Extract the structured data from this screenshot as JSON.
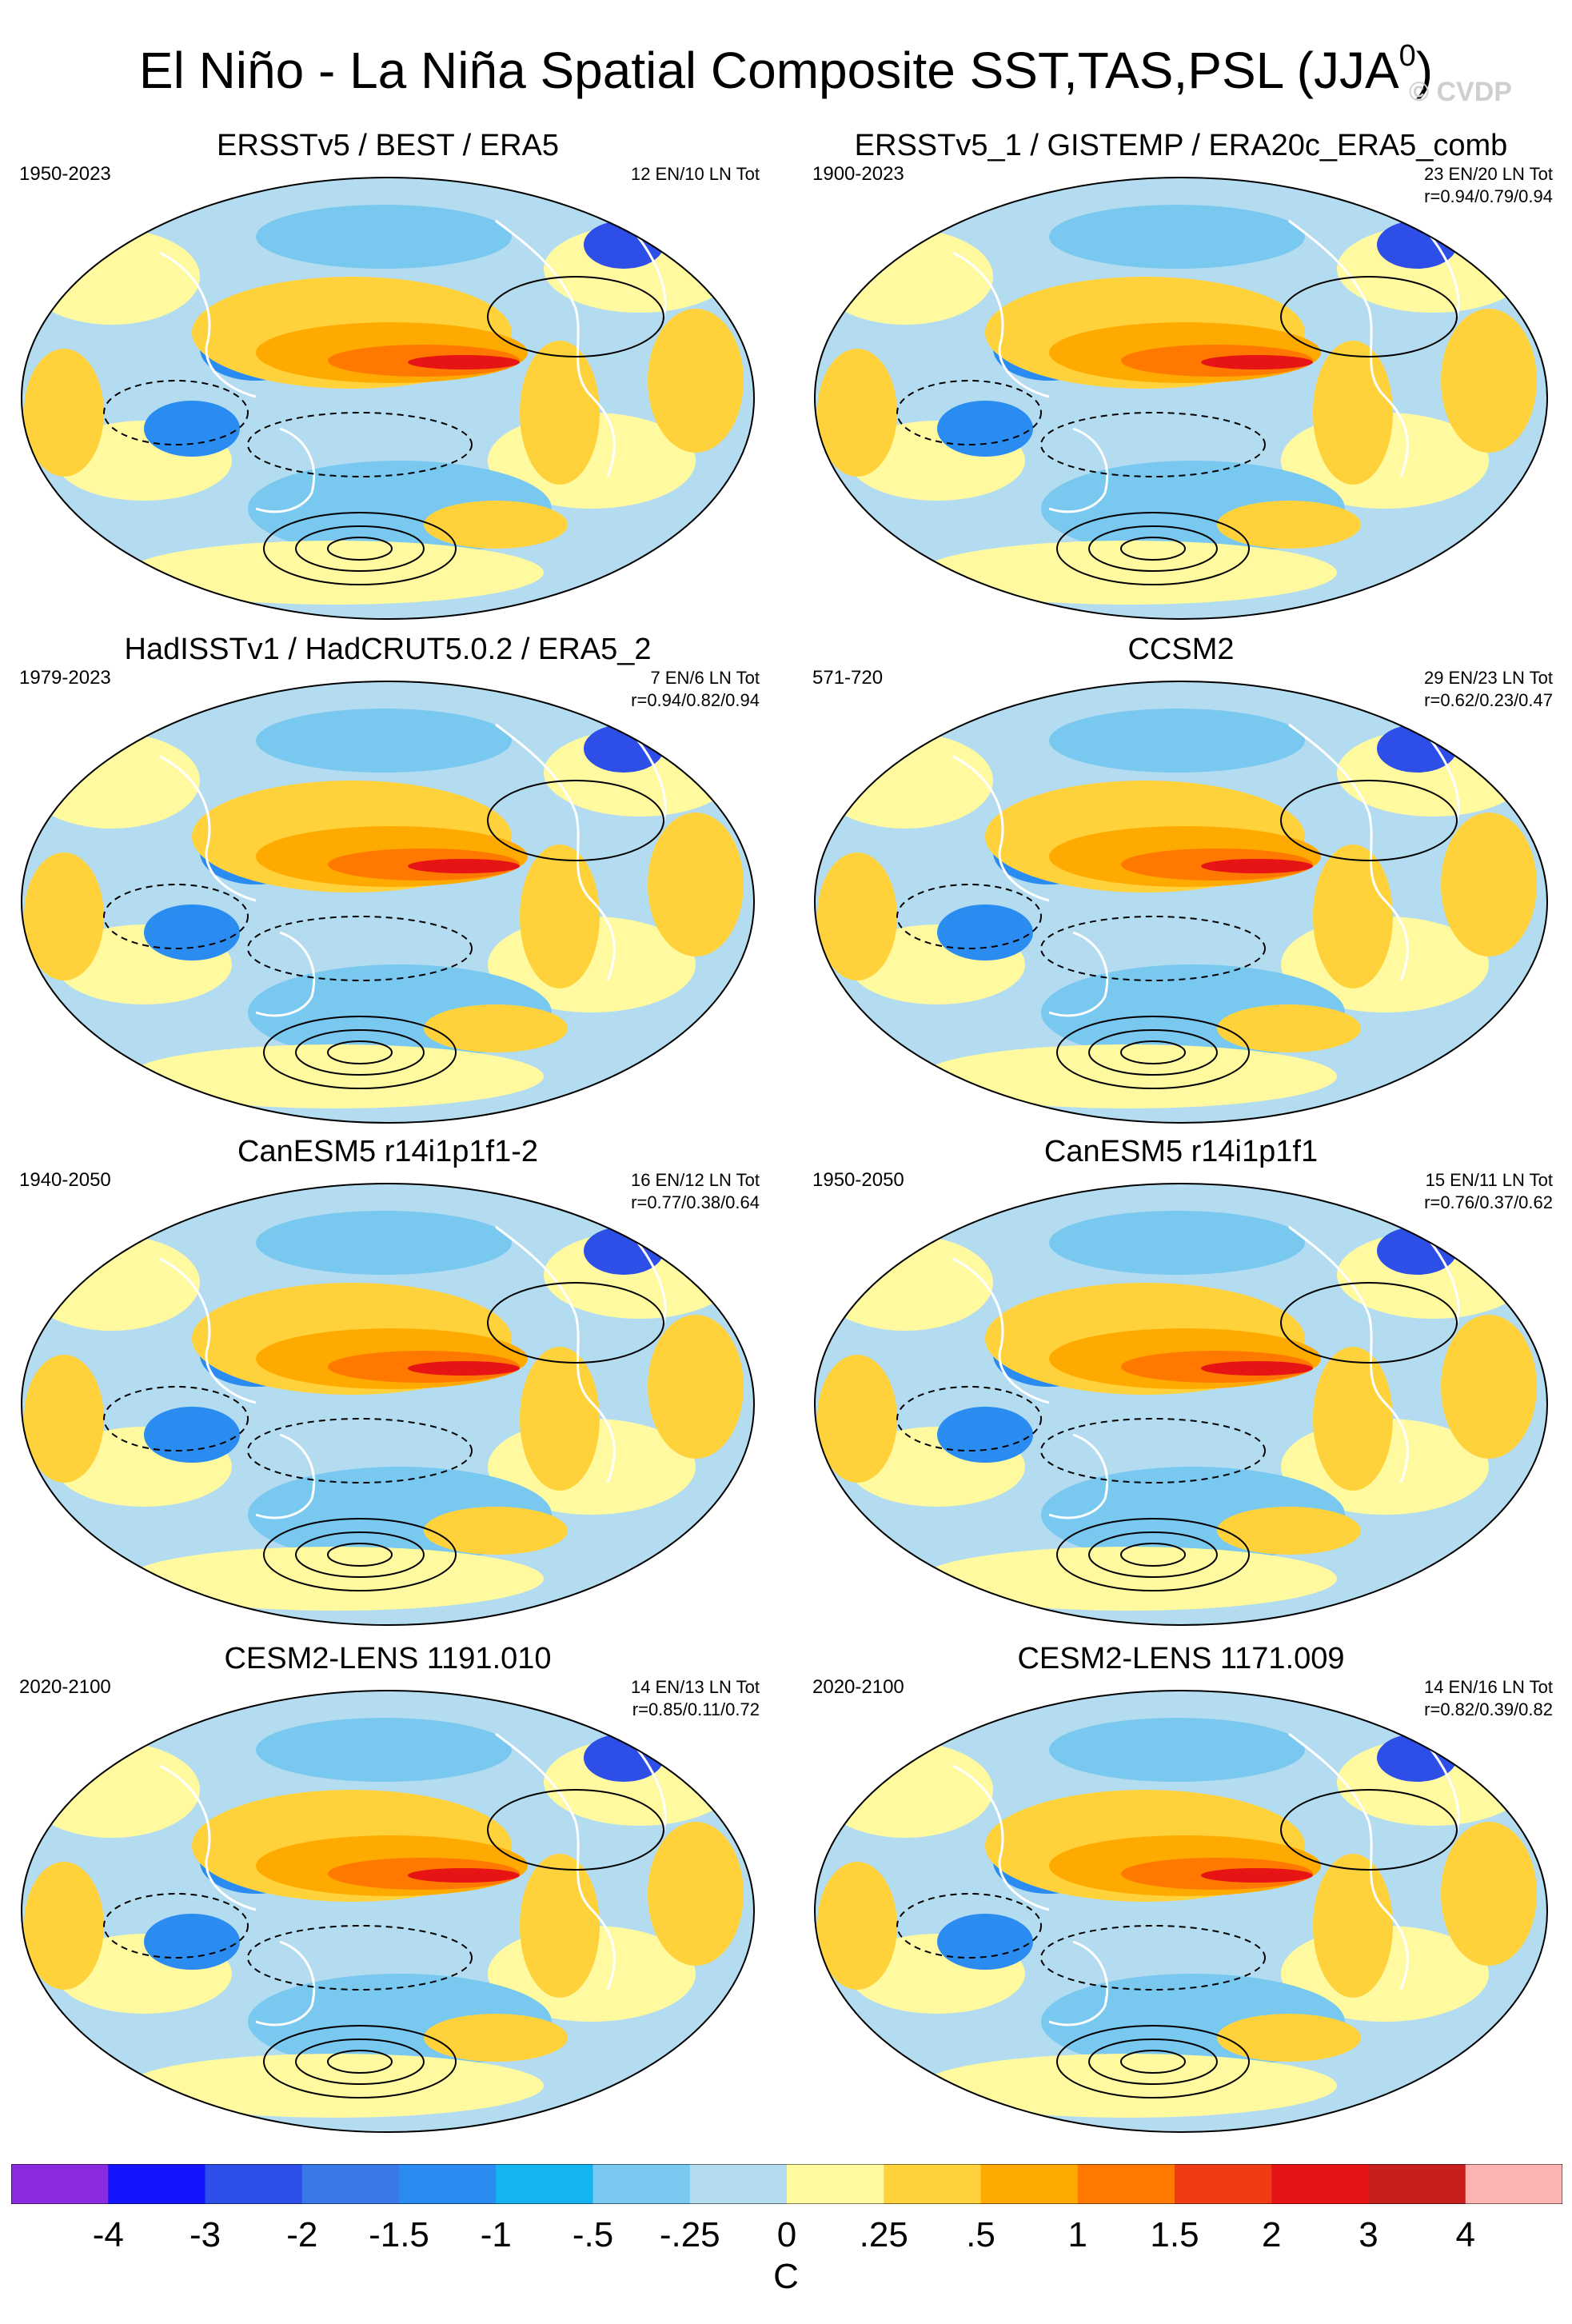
{
  "figure": {
    "title_main": "El Niño - La Niña Spatial Composite SST,TAS,PSL (JJA",
    "title_sup": "0",
    "title_close": ")",
    "watermark": "© CVDP"
  },
  "panels": [
    {
      "title": "ERSSTv5 / BEST / ERA5",
      "years": "1950-2023",
      "count": "12 EN/10 LN Tot",
      "corr": ""
    },
    {
      "title": "ERSSTv5_1 / GISTEMP / ERA20c_ERA5_comb",
      "years": "1900-2023",
      "count": "23 EN/20 LN Tot",
      "corr": "r=0.94/0.79/0.94"
    },
    {
      "title": "HadISSTv1 / HadCRUT5.0.2 / ERA5_2",
      "years": "1979-2023",
      "count": "7 EN/6 LN Tot",
      "corr": "r=0.94/0.82/0.94"
    },
    {
      "title": "CCSM2",
      "years": "571-720",
      "count": "29 EN/23 LN Tot",
      "corr": "r=0.62/0.23/0.47"
    },
    {
      "title": "CanESM5 r14i1p1f1-2",
      "years": "1940-2050",
      "count": "16 EN/12 LN Tot",
      "corr": "r=0.77/0.38/0.64"
    },
    {
      "title": "CanESM5 r14i1p1f1",
      "years": "1950-2050",
      "count": "15 EN/11 LN Tot",
      "corr": "r=0.76/0.37/0.62"
    },
    {
      "title": "CESM2-LENS 1191.010",
      "years": "2020-2100",
      "count": "14 EN/13 LN Tot",
      "corr": "r=0.85/0.11/0.72"
    },
    {
      "title": "CESM2-LENS 1171.009",
      "years": "2020-2100",
      "count": "14 EN/16 LN Tot",
      "corr": "r=0.82/0.39/0.82"
    }
  ],
  "colorbar": {
    "unit": "C",
    "labels": [
      "-4",
      "-3",
      "-2",
      "-1.5",
      "-1",
      "-.5",
      "-.25",
      "0",
      ".25",
      ".5",
      "1",
      "1.5",
      "2",
      "3",
      "4"
    ],
    "colors": [
      "#8a2be2",
      "#1414ff",
      "#2e4ee8",
      "#3a78e8",
      "#2a8cf0",
      "#14b4f0",
      "#78c8f0",
      "#b4dcf0",
      "#fffaa0",
      "#ffd23c",
      "#ffaa00",
      "#ff7800",
      "#f03c14",
      "#e61414",
      "#c81e1e",
      "#ffb4b4"
    ]
  },
  "map_colors": {
    "ocean_base": "#b4dcf0",
    "neutral": "#fffaa0",
    "warm1": "#ffd23c",
    "warm2": "#ffaa00",
    "warm3": "#ff7800",
    "warm4": "#e61414",
    "cool1": "#78c8f0",
    "cool2": "#2a8cf0",
    "cool3": "#2e4ee8"
  }
}
